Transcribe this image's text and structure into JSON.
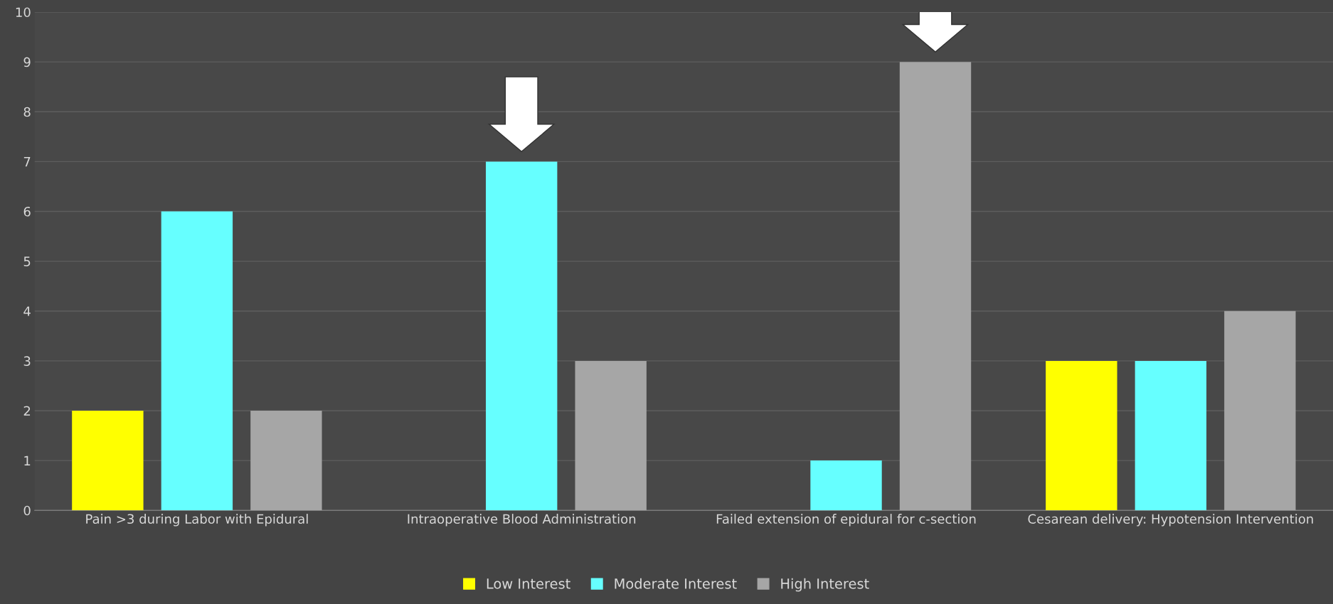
{
  "chart_data": {
    "type": "bar",
    "categories": [
      "Pain >3 during Labor with Epidural",
      "Intraoperative Blood Administration",
      "Failed extension of epidural for c-section",
      "Cesarean delivery: Hypotension Intervention"
    ],
    "series": [
      {
        "name": "Low Interest",
        "color": "#ffff00",
        "values": [
          2,
          null,
          null,
          3
        ]
      },
      {
        "name": "Moderate Interest",
        "color": "#66ffff",
        "values": [
          6,
          7,
          1,
          3
        ]
      },
      {
        "name": "High Interest",
        "color": "#a6a6a6",
        "values": [
          2,
          3,
          9,
          4
        ]
      }
    ],
    "ylim": [
      0,
      10
    ],
    "yticks": [
      0,
      1,
      2,
      3,
      4,
      5,
      6,
      7,
      8,
      9,
      10
    ],
    "grid": "y",
    "legend": "bottom"
  }
}
